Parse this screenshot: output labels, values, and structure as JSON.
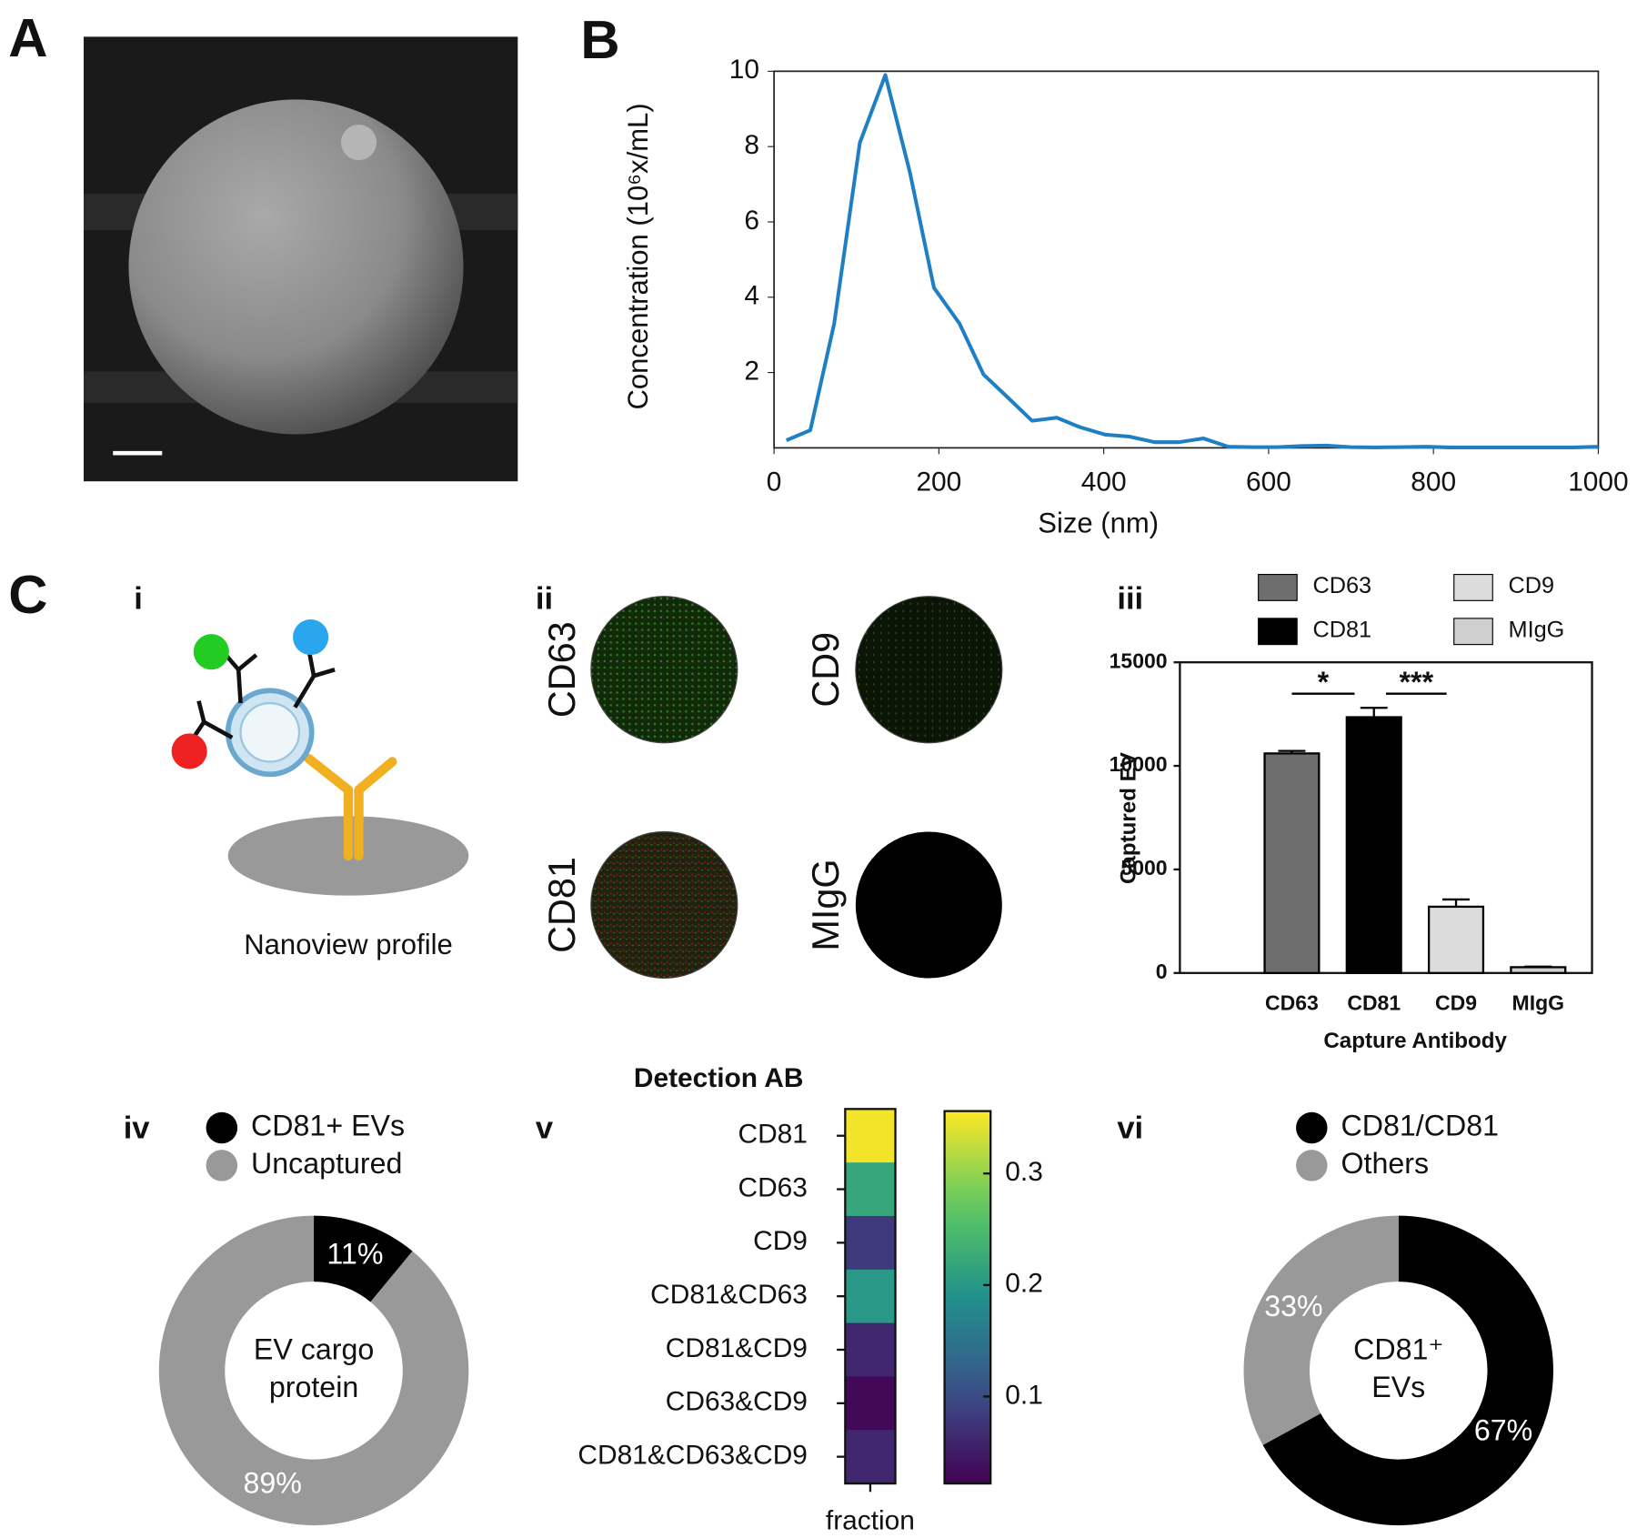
{
  "figure": {
    "panel_labels": [
      "A",
      "B",
      "C",
      "i",
      "ii",
      "iii",
      "iv",
      "v",
      "vi"
    ],
    "schematic_caption": "Nanoview profile",
    "image_labels": [
      "CD63",
      "CD9",
      "CD81",
      "MIgG"
    ]
  },
  "chart_data": [
    {
      "type": "line",
      "xlabel": "Size (nm)",
      "ylabel": "Concentration (10⁶x/mL)",
      "x": [
        15,
        44,
        73,
        104,
        135,
        165,
        194,
        225,
        254,
        283,
        313,
        343,
        371,
        402,
        431,
        462,
        491,
        521,
        551,
        580,
        610,
        640,
        670,
        700,
        730,
        760,
        790,
        820,
        850,
        880,
        910,
        940,
        970,
        1000
      ],
      "values": [
        0.2,
        0.47,
        3.3,
        8.1,
        9.9,
        7.3,
        4.25,
        3.3,
        1.95,
        1.35,
        0.72,
        0.8,
        0.55,
        0.35,
        0.3,
        0.15,
        0.15,
        0.25,
        0.03,
        0.02,
        0.02,
        0.05,
        0.06,
        0.02,
        0.01,
        0.02,
        0.03,
        0.01,
        0.01,
        0.01,
        0.01,
        0.01,
        0.01,
        0.03
      ],
      "color": "#1f7fc4",
      "xlim": [
        0,
        1000
      ],
      "ylim": [
        0,
        10
      ],
      "xticks": [
        0,
        200,
        400,
        600,
        800,
        1000
      ],
      "yticks": [
        2,
        4,
        6,
        8,
        10
      ],
      "grid": false
    },
    {
      "type": "bar",
      "xlabel": "Capture Antibody",
      "ylabel": "Captured EV",
      "categories": [
        "CD63",
        "CD81",
        "CD9",
        "MIgG"
      ],
      "values": [
        10600,
        12350,
        3200,
        280
      ],
      "errors": [
        120,
        450,
        350,
        30
      ],
      "colors": [
        "#6e6e6e",
        "#000000",
        "#dcdcdc",
        "#cfcfcf"
      ],
      "ylim": [
        0,
        15000
      ],
      "yticks": [
        0,
        5000,
        10000,
        15000
      ],
      "annotations": [
        "*",
        "***"
      ],
      "legend": "top"
    },
    {
      "type": "heatmap",
      "title": "Detection AB",
      "xlabel": "fraction",
      "categories": [
        "CD81",
        "CD63",
        "CD9",
        "CD81&CD63",
        "CD81&CD9",
        "CD63&CD9",
        "CD81&CD63&CD9"
      ],
      "values": [
        0.35,
        0.22,
        0.08,
        0.2,
        0.06,
        0.03,
        0.06
      ],
      "colormap": "viridis",
      "clim": [
        0.022,
        0.356
      ],
      "cticks": [
        0.1,
        0.2,
        0.3
      ]
    },
    {
      "type": "pie",
      "categories": [
        "CD81+ EVs",
        "Uncaptured"
      ],
      "values": [
        11,
        89
      ],
      "value_labels": [
        "11%",
        "89%"
      ],
      "colors": [
        "#000000",
        "#999999"
      ],
      "center_text": [
        "EV cargo",
        "protein"
      ]
    },
    {
      "type": "pie",
      "categories": [
        "CD81/CD81",
        "Others"
      ],
      "values": [
        67,
        33
      ],
      "value_labels": [
        "67%",
        "33%"
      ],
      "colors": [
        "#000000",
        "#999999"
      ],
      "center_text": [
        "CD81⁺",
        "EVs"
      ]
    }
  ]
}
